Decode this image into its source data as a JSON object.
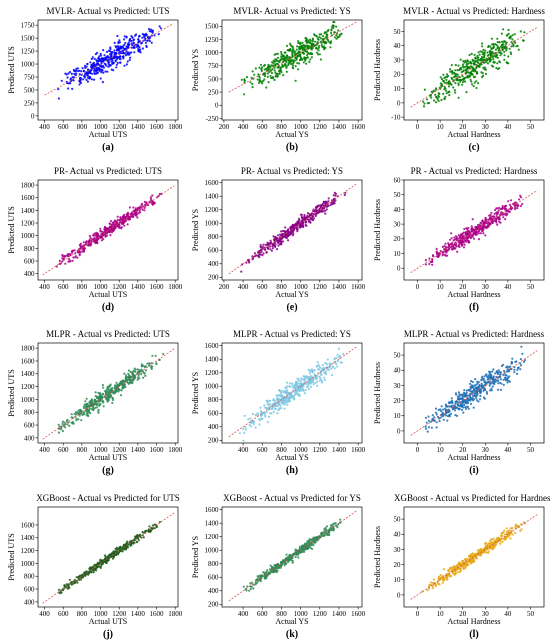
{
  "chart_data": [
    {
      "type": "scatter",
      "label": "(a)",
      "title": "MVLR- Actual vs Predicted: UTS",
      "xlabel": "Actual UTS",
      "ylabel": "Predicted UTS",
      "xlim": [
        330,
        1830
      ],
      "ylim": [
        -80,
        1850
      ],
      "xticks": [
        400,
        600,
        800,
        1000,
        1200,
        1400,
        1600,
        1800
      ],
      "yticks": [
        0,
        250,
        500,
        750,
        1000,
        1250,
        1500,
        1750
      ],
      "color": "#0000ff",
      "line": [
        [
          400,
          400
        ],
        [
          1780,
          1780
        ]
      ],
      "data_range": [
        400,
        1780
      ],
      "noise": 110,
      "n": 420
    },
    {
      "type": "scatter",
      "label": "(b)",
      "title": "MVLR- Actual vs Predicted: YS",
      "xlabel": "Actual YS",
      "ylabel": "Predicted YS",
      "xlim": [
        180,
        1640
      ],
      "ylim": [
        -280,
        1620
      ],
      "xticks": [
        200,
        400,
        600,
        800,
        1000,
        1200,
        1400,
        1600
      ],
      "yticks": [
        -250,
        0,
        250,
        500,
        750,
        1000,
        1250,
        1500
      ],
      "color": "#008000",
      "line": [
        [
          250,
          250
        ],
        [
          1580,
          1580
        ]
      ],
      "data_range": [
        250,
        1580
      ],
      "noise": 120,
      "n": 420
    },
    {
      "type": "scatter",
      "label": "(c)",
      "title": "MVLR - Actual vs Predicted: Hardness",
      "xlabel": "Actual Hardness",
      "ylabel": "Predicted Hardness",
      "xlim": [
        -6,
        56
      ],
      "ylim": [
        -12,
        58
      ],
      "xticks": [
        0,
        10,
        20,
        30,
        40,
        50
      ],
      "yticks": [
        -10,
        0,
        10,
        20,
        30,
        40,
        50
      ],
      "color": "#008000",
      "line": [
        [
          -3,
          -3
        ],
        [
          53,
          53
        ]
      ],
      "data_range": [
        -3,
        53
      ],
      "noise": 5,
      "n": 420
    },
    {
      "type": "scatter",
      "label": "(d)",
      "title": "PR- Actual vs Predicted: UTS",
      "xlabel": "Actual UTS",
      "ylabel": "Predicted UTS",
      "xlim": [
        330,
        1830
      ],
      "ylim": [
        300,
        1880
      ],
      "xticks": [
        400,
        600,
        800,
        1000,
        1200,
        1400,
        1600,
        1800
      ],
      "yticks": [
        400,
        600,
        800,
        1000,
        1200,
        1400,
        1600,
        1800
      ],
      "color": "#aa0088",
      "line": [
        [
          380,
          380
        ],
        [
          1790,
          1790
        ]
      ],
      "data_range": [
        380,
        1790
      ],
      "noise": 45,
      "n": 420
    },
    {
      "type": "scatter",
      "label": "(e)",
      "title": "PR- Actual vs Predicted: YS",
      "xlabel": "Actual YS",
      "ylabel": "Predicted YS",
      "xlim": [
        180,
        1640
      ],
      "ylim": [
        160,
        1640
      ],
      "xticks": [
        200,
        400,
        600,
        800,
        1000,
        1200,
        1400,
        1600
      ],
      "yticks": [
        200,
        400,
        600,
        800,
        1000,
        1200,
        1400,
        1600
      ],
      "color": "#880088",
      "line": [
        [
          250,
          250
        ],
        [
          1580,
          1580
        ]
      ],
      "data_range": [
        250,
        1580
      ],
      "noise": 45,
      "n": 420
    },
    {
      "type": "scatter",
      "label": "(f)",
      "title": "PR - Actual vs Predicted: Hardness",
      "xlabel": "Actual Hardness",
      "ylabel": "Predicted Hardness",
      "xlim": [
        -6,
        56
      ],
      "ylim": [
        -8,
        60
      ],
      "xticks": [
        0,
        10,
        20,
        30,
        40,
        50
      ],
      "yticks": [
        0,
        10,
        20,
        30,
        40,
        50,
        60
      ],
      "color": "#aa0088",
      "line": [
        [
          -3,
          -3
        ],
        [
          53,
          53
        ]
      ],
      "data_range": [
        -3,
        53
      ],
      "noise": 2.5,
      "n": 420
    },
    {
      "type": "scatter",
      "label": "(g)",
      "title": "MLPR - Actual vs Predicted: UTS",
      "xlabel": "Actual UTS",
      "ylabel": "Predicted UTS",
      "xlim": [
        330,
        1830
      ],
      "ylim": [
        320,
        1880
      ],
      "xticks": [
        400,
        600,
        800,
        1000,
        1200,
        1400,
        1600,
        1800
      ],
      "yticks": [
        400,
        600,
        800,
        1000,
        1200,
        1400,
        1600,
        1800
      ],
      "color": "#2e8b57",
      "line": [
        [
          380,
          380
        ],
        [
          1790,
          1790
        ]
      ],
      "data_range": [
        380,
        1790
      ],
      "noise": 60,
      "n": 420
    },
    {
      "type": "scatter",
      "label": "(h)",
      "title": "MLPR - Actual vs Predicted: YS",
      "xlabel": "Actual YS",
      "ylabel": "Predicted YS",
      "xlim": [
        180,
        1640
      ],
      "ylim": [
        160,
        1640
      ],
      "xticks": [
        400,
        600,
        800,
        1000,
        1200,
        1400,
        1600
      ],
      "yticks": [
        200,
        400,
        600,
        800,
        1000,
        1200,
        1400,
        1600
      ],
      "color": "#7ec8e3",
      "line": [
        [
          250,
          250
        ],
        [
          1580,
          1580
        ]
      ],
      "data_range": [
        250,
        1580
      ],
      "noise": 70,
      "n": 420
    },
    {
      "type": "scatter",
      "label": "(i)",
      "title": "MLPR - Actual vs Predicted: Hardness",
      "xlabel": "Actual Hardness",
      "ylabel": "Predicted Hardness",
      "xlim": [
        -6,
        56
      ],
      "ylim": [
        -8,
        58
      ],
      "xticks": [
        0,
        10,
        20,
        30,
        40,
        50
      ],
      "yticks": [
        0,
        10,
        20,
        30,
        40,
        50
      ],
      "color": "#1f6fb5",
      "line": [
        [
          -3,
          -3
        ],
        [
          53,
          53
        ]
      ],
      "data_range": [
        -3,
        53
      ],
      "noise": 3.5,
      "n": 420
    },
    {
      "type": "scatter",
      "label": "(j)",
      "title": "XGBoost - Actual vs Predicted for UTS",
      "xlabel": "Actual UTS",
      "ylabel": "Predicted UTS",
      "xlim": [
        330,
        1830
      ],
      "ylim": [
        320,
        1880
      ],
      "xticks": [
        400,
        600,
        800,
        1000,
        1200,
        1400,
        1600,
        1800
      ],
      "yticks": [
        400,
        600,
        800,
        1000,
        1200,
        1400,
        1600
      ],
      "color": "#1f5f1f",
      "line": [
        [
          380,
          380
        ],
        [
          1790,
          1790
        ]
      ],
      "data_range": [
        380,
        1790
      ],
      "noise": 25,
      "n": 420
    },
    {
      "type": "scatter",
      "label": "(k)",
      "title": "XGBoost - Actual vs Predicted for YS",
      "xlabel": "Actual YS",
      "ylabel": "Predicted YS",
      "xlim": [
        180,
        1640
      ],
      "ylim": [
        160,
        1640
      ],
      "xticks": [
        400,
        600,
        800,
        1000,
        1200,
        1400,
        1600
      ],
      "yticks": [
        200,
        400,
        600,
        800,
        1000,
        1200,
        1400,
        1600
      ],
      "color": "#2e8b57",
      "line": [
        [
          250,
          250
        ],
        [
          1580,
          1580
        ]
      ],
      "data_range": [
        250,
        1580
      ],
      "noise": 30,
      "n": 420
    },
    {
      "type": "scatter",
      "label": "(l)",
      "title": "XGBoost - Actual vs Predicted for Hardness",
      "xlabel": "Actual Hardness",
      "ylabel": "Predicted Hardness",
      "xlim": [
        -6,
        56
      ],
      "ylim": [
        -8,
        58
      ],
      "xticks": [
        0,
        10,
        20,
        30,
        40,
        50
      ],
      "yticks": [
        0,
        10,
        20,
        30,
        40,
        50
      ],
      "color": "#e6a817",
      "line": [
        [
          -3,
          -3
        ],
        [
          53,
          53
        ]
      ],
      "data_range": [
        -3,
        53
      ],
      "noise": 1.6,
      "n": 420
    }
  ],
  "line_color": "#d9534f"
}
